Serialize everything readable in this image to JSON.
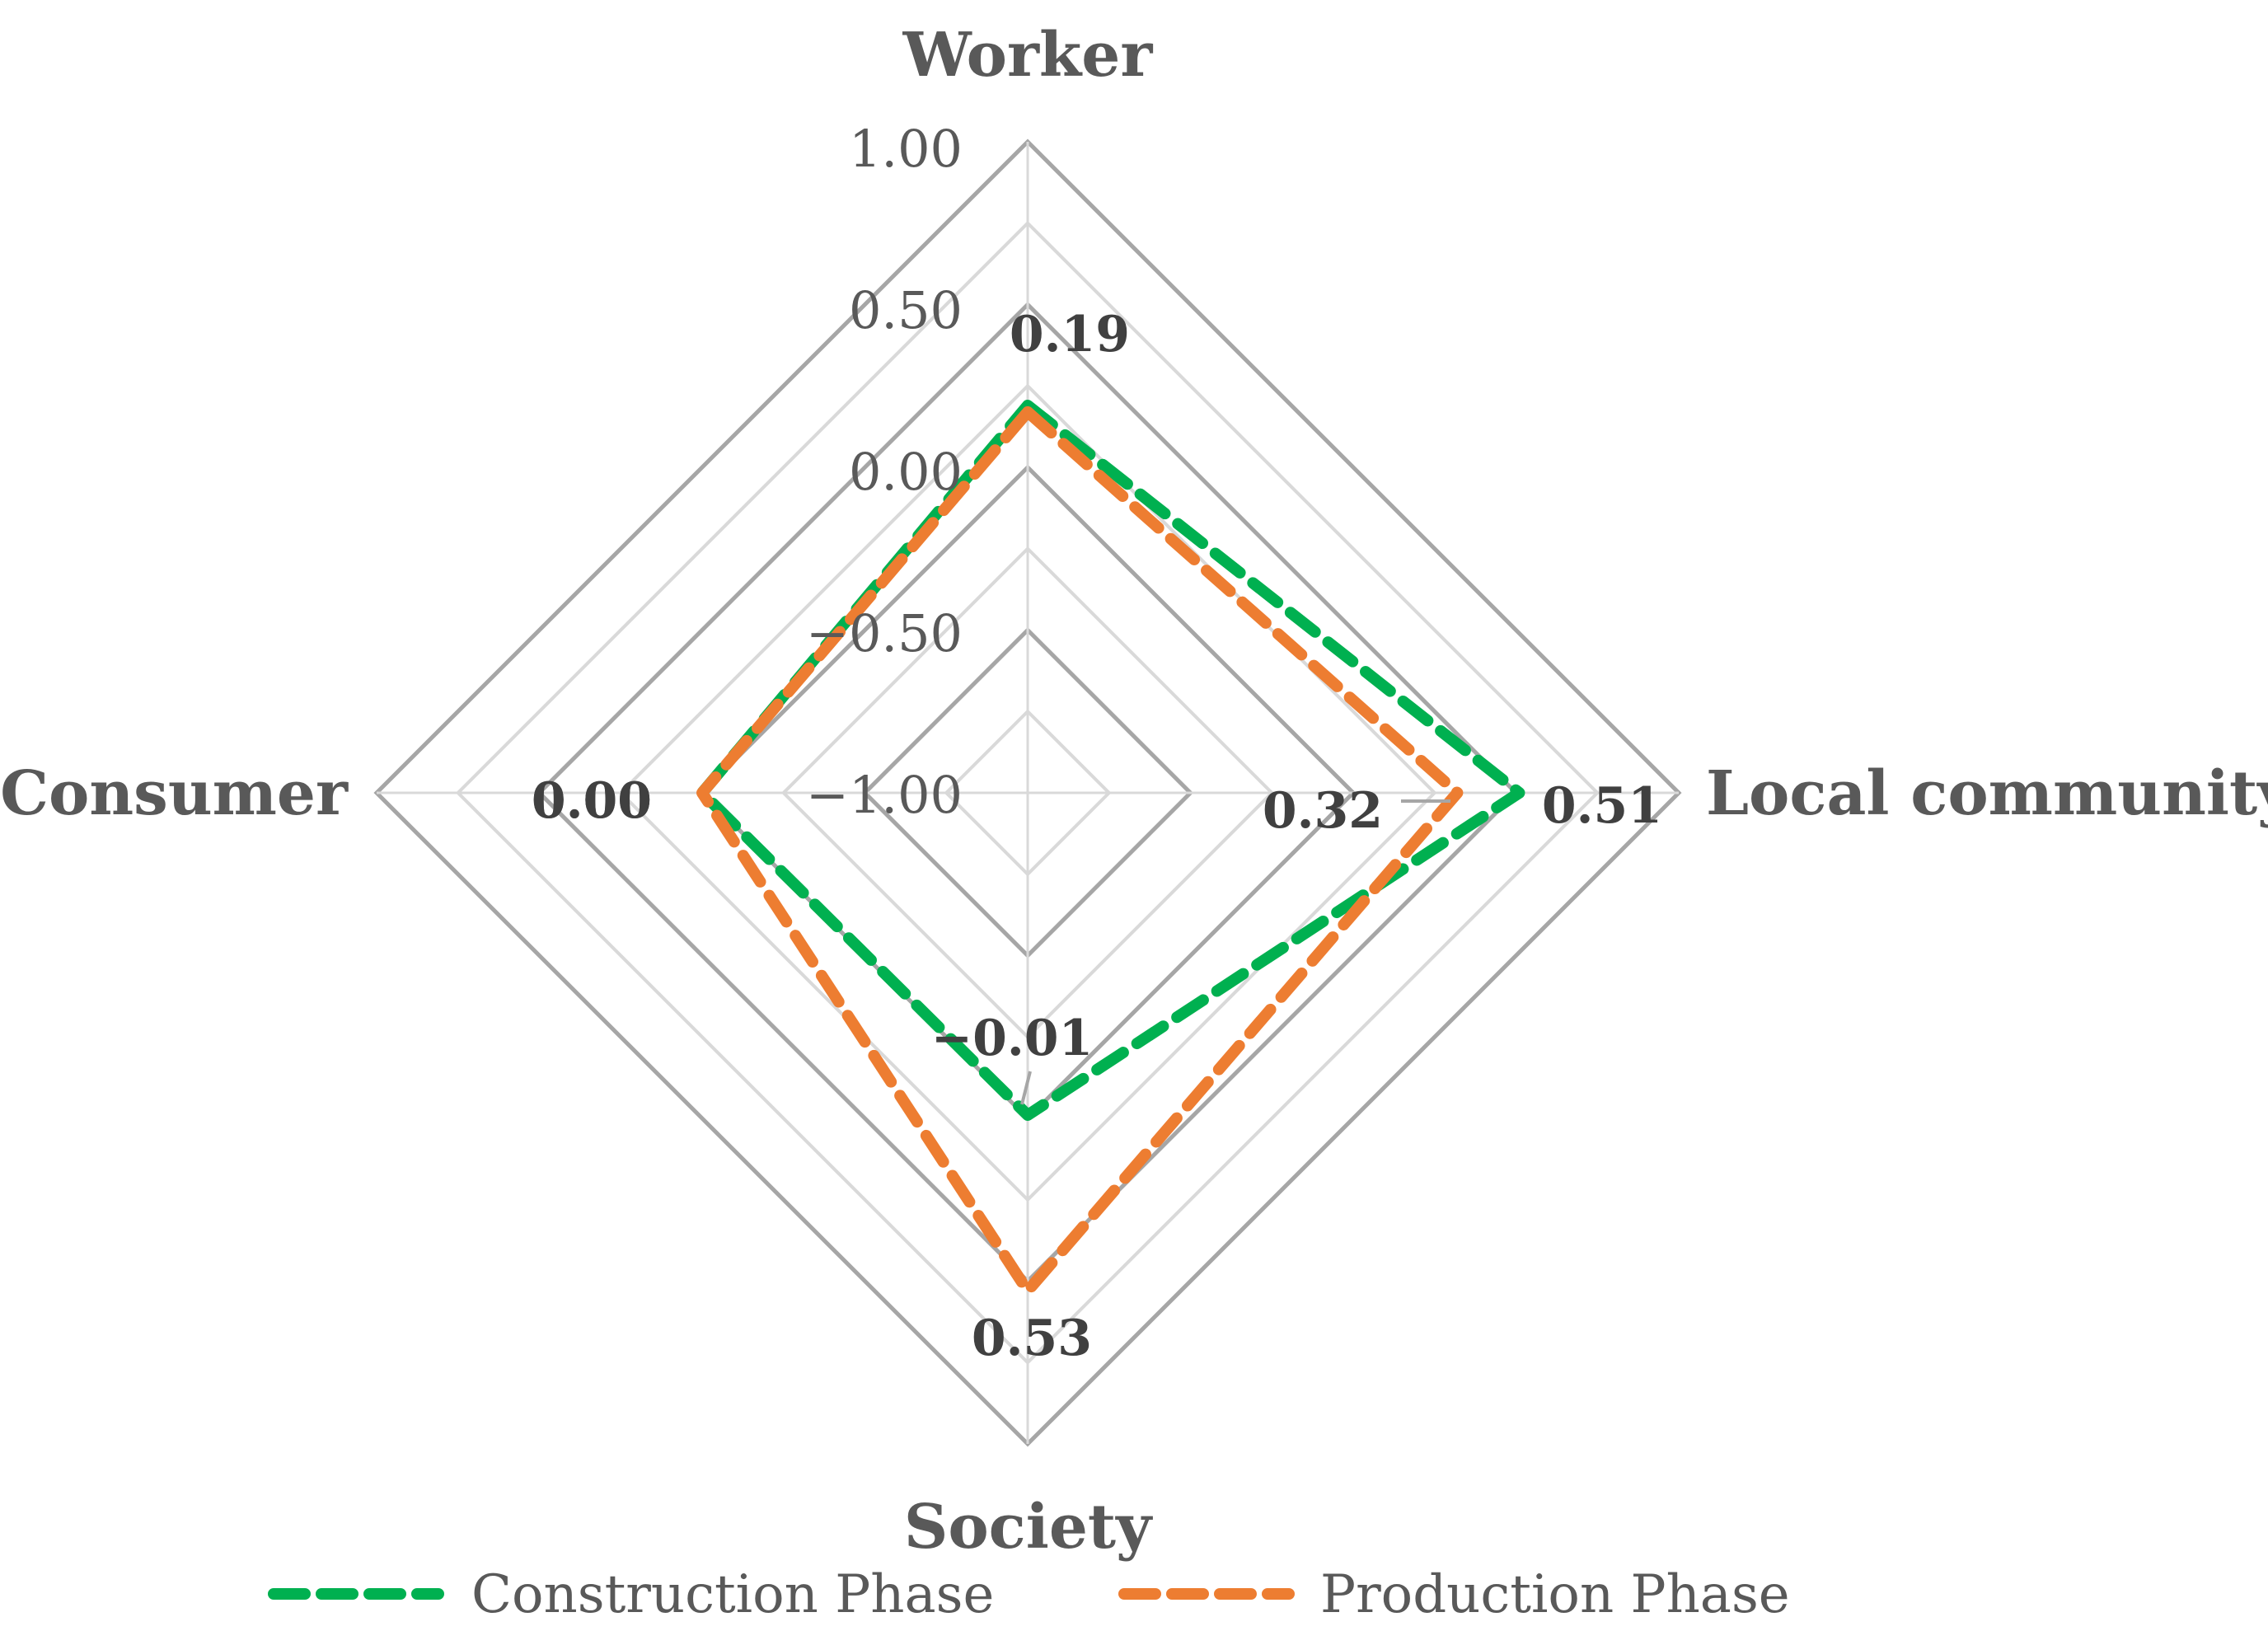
{
  "chart_data": {
    "type": "radar",
    "axes": [
      "Worker",
      "Local community",
      "Society",
      "Consumer"
    ],
    "rlim": [
      -1.0,
      1.0
    ],
    "ticks": [
      1.0,
      0.5,
      0.0,
      -0.5,
      -1.0
    ],
    "tick_labels": [
      "1.00",
      "0.50",
      "0.00",
      "−0.50",
      "−1.00"
    ],
    "series": [
      {
        "name": "Construction Phase",
        "values": [
          0.19,
          0.51,
          -0.01,
          0.0
        ],
        "color": "#00B050",
        "line_style": "dashed"
      },
      {
        "name": "Production Phase",
        "values": [
          0.17,
          0.32,
          0.53,
          0.0
        ],
        "color": "#ED7D31",
        "line_style": "dashed"
      }
    ],
    "data_labels": [
      "0.19",
      "0.51",
      "0.32",
      "−0.01",
      "0.53",
      "0.00",
      "0.00"
    ],
    "grid": true,
    "legend_position": "bottom"
  }
}
